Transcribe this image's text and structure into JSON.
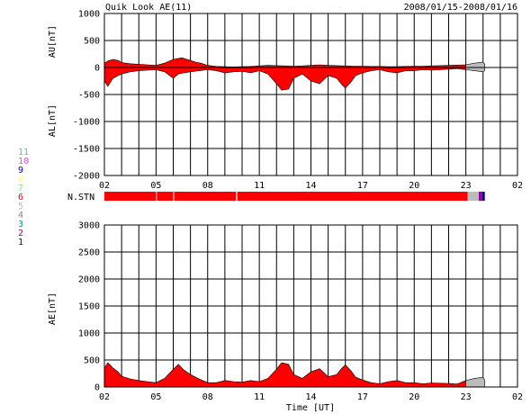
{
  "header": {
    "title": "Quik Look AE(11)",
    "date_range": "2008/01/15-2008/01/16"
  },
  "nstn_legend": {
    "label": "N.STN",
    "entries": [
      {
        "label": "11",
        "color": "#00dddd"
      },
      {
        "label": "10",
        "color": "#ff33ff"
      },
      {
        "label": "9",
        "color": "#0000cc"
      },
      {
        "label": "8",
        "color": "#ffff66"
      },
      {
        "label": "7",
        "color": "#66ff66"
      },
      {
        "label": "6",
        "color": "#ff0000"
      },
      {
        "label": "5",
        "color": "#bbbbbb"
      },
      {
        "label": "4",
        "color": "#888888"
      },
      {
        "label": "3",
        "color": "#009999"
      },
      {
        "label": "2",
        "color": "#990099"
      },
      {
        "label": "1",
        "color": "#000099"
      }
    ],
    "segments": [
      {
        "from_hour": 0,
        "to_hour": 3.0,
        "stations": 6
      },
      {
        "from_hour": 3.05,
        "to_hour": 4.0,
        "stations": 6
      },
      {
        "from_hour": 4.05,
        "to_hour": 7.65,
        "stations": 6
      },
      {
        "from_hour": 7.72,
        "to_hour": 21.1,
        "stations": 6
      },
      {
        "from_hour": 21.1,
        "to_hour": 21.75,
        "stations": 5
      },
      {
        "from_hour": 21.75,
        "to_hour": 21.95,
        "stations": 2
      },
      {
        "from_hour": 21.95,
        "to_hour": 22.1,
        "stations": 1
      }
    ]
  },
  "chart_data": [
    {
      "type": "area",
      "title": "Quik Look AE(11)",
      "subtitle": "2008/01/15-2008/01/16",
      "ylabel_top": "AU[nT]",
      "ylabel_bottom": "AL[nT]",
      "xlabel": "",
      "ylim": [
        -2000,
        1000
      ],
      "yticks": [
        "1000",
        "500",
        "0",
        "-500",
        "-1000",
        "-1500",
        "-2000"
      ],
      "xlim_hours": [
        0,
        24
      ],
      "xticks": [
        "02",
        "05",
        "08",
        "11",
        "14",
        "17",
        "20",
        "23",
        "02"
      ],
      "grid": true,
      "fill_color": "#ff0000",
      "partial_color": "#bbbbbb",
      "series": [
        {
          "name": "AU",
          "x_hours": [
            0,
            0.2,
            0.5,
            0.8,
            1.0,
            1.5,
            2.0,
            2.5,
            3.0,
            3.5,
            4.0,
            4.5,
            5.0,
            5.3,
            5.6,
            6.0,
            6.5,
            7.0,
            7.5,
            8.0,
            8.5,
            9.0,
            9.5,
            10.0,
            10.5,
            11.0,
            11.5,
            12.0,
            12.5,
            13.0,
            13.5,
            14.0,
            14.5,
            15.0,
            15.5,
            16.0,
            16.5,
            17.0,
            17.5,
            18.0,
            18.5,
            19.0,
            19.5,
            20.0,
            20.5,
            21.0,
            21.5,
            22.0,
            22.1
          ],
          "values": [
            80,
            120,
            150,
            130,
            90,
            70,
            60,
            50,
            40,
            80,
            150,
            180,
            130,
            100,
            80,
            40,
            20,
            15,
            10,
            15,
            20,
            30,
            40,
            35,
            30,
            25,
            30,
            40,
            50,
            40,
            35,
            30,
            25,
            25,
            20,
            20,
            15,
            15,
            20,
            25,
            25,
            30,
            35,
            40,
            45,
            50,
            80,
            100,
            60
          ]
        },
        {
          "name": "AL",
          "x_hours": [
            0,
            0.2,
            0.5,
            0.8,
            1.0,
            1.5,
            2.0,
            2.5,
            3.0,
            3.5,
            4.0,
            4.3,
            4.6,
            5.0,
            5.5,
            6.0,
            6.5,
            7.0,
            7.5,
            8.0,
            8.5,
            9.0,
            9.5,
            10.0,
            10.3,
            10.7,
            11.0,
            11.5,
            12.0,
            12.5,
            13.0,
            13.5,
            13.8,
            14.0,
            14.3,
            14.6,
            15.0,
            15.5,
            16.0,
            16.5,
            17.0,
            17.5,
            18.0,
            18.5,
            19.0,
            19.5,
            20.0,
            20.5,
            21.0,
            21.5,
            22.0,
            22.1
          ],
          "values": [
            -250,
            -350,
            -200,
            -150,
            -120,
            -80,
            -60,
            -50,
            -40,
            -80,
            -200,
            -120,
            -100,
            -80,
            -60,
            -40,
            -60,
            -100,
            -80,
            -70,
            -100,
            -60,
            -120,
            -300,
            -420,
            -400,
            -200,
            -120,
            -250,
            -300,
            -150,
            -200,
            -320,
            -380,
            -280,
            -150,
            -100,
            -60,
            -40,
            -80,
            -100,
            -60,
            -60,
            -40,
            -50,
            -40,
            -30,
            -20,
            -40,
            -60,
            -80,
            -50
          ]
        }
      ]
    },
    {
      "type": "area",
      "ylabel": "AE[nT]",
      "xlabel": "Time [UT]",
      "ylim": [
        0,
        3000
      ],
      "yticks": [
        "3000",
        "2500",
        "2000",
        "1500",
        "1000",
        "500",
        "0"
      ],
      "xlim_hours": [
        0,
        24
      ],
      "xticks": [
        "02",
        "05",
        "08",
        "11",
        "14",
        "17",
        "20",
        "23",
        "02"
      ],
      "grid": true,
      "fill_color": "#ff0000",
      "partial_color": "#bbbbbb",
      "series": [
        {
          "name": "AE",
          "x_hours": [
            0,
            0.2,
            0.5,
            0.8,
            1.0,
            1.5,
            2.0,
            2.5,
            3.0,
            3.5,
            4.0,
            4.3,
            4.6,
            5.0,
            5.5,
            6.0,
            6.5,
            7.0,
            7.5,
            8.0,
            8.5,
            9.0,
            9.5,
            10.0,
            10.3,
            10.7,
            11.0,
            11.5,
            12.0,
            12.5,
            13.0,
            13.5,
            13.8,
            14.0,
            14.3,
            14.6,
            15.0,
            15.5,
            16.0,
            16.5,
            17.0,
            17.5,
            18.0,
            18.5,
            19.0,
            19.5,
            20.0,
            20.5,
            21.0,
            21.5,
            22.0,
            22.1
          ],
          "values": [
            350,
            450,
            350,
            280,
            200,
            150,
            120,
            100,
            80,
            160,
            330,
            420,
            320,
            230,
            150,
            80,
            80,
            120,
            100,
            90,
            120,
            100,
            160,
            330,
            450,
            420,
            230,
            160,
            280,
            340,
            190,
            230,
            350,
            410,
            310,
            180,
            130,
            80,
            60,
            100,
            120,
            80,
            80,
            60,
            75,
            70,
            65,
            55,
            120,
            160,
            180,
            120
          ]
        }
      ]
    }
  ]
}
